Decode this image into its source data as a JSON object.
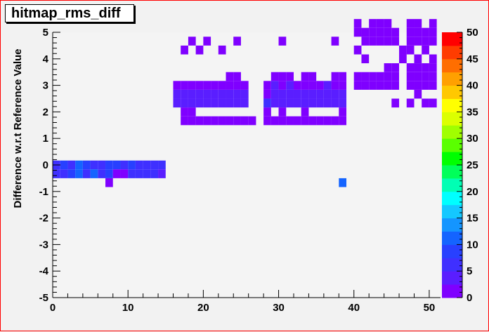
{
  "chart_data": {
    "type": "heatmap",
    "title": "hitmap_rms_diff",
    "xlabel": "",
    "ylabel": "Difference w.r.t Reference Value",
    "xlim": [
      0,
      51.5
    ],
    "ylim": [
      -5,
      5
    ],
    "x_ticks": [
      0,
      10,
      20,
      30,
      40,
      50
    ],
    "y_ticks": [
      -5,
      -4,
      -3,
      -2,
      -1,
      0,
      1,
      2,
      3,
      4,
      5
    ],
    "x_bin_width": 1,
    "y_bin_width": 0.333,
    "zlim": [
      0,
      50
    ],
    "z_ticks": [
      0,
      5,
      10,
      15,
      20,
      25,
      30,
      35,
      40,
      45,
      50
    ],
    "palette": [
      "#7f00ff",
      "#5a1eff",
      "#3f30ff",
      "#2840ff",
      "#1464ff",
      "#1495ff",
      "#14c8ff",
      "#00ffff",
      "#00ffb4",
      "#00ff5a",
      "#00ff00",
      "#5aff00",
      "#a0ff00",
      "#dcff00",
      "#ffff00",
      "#ffc800",
      "#ffa000",
      "#ff6e00",
      "#ff3c00",
      "#ff0000"
    ],
    "grid": false,
    "legend": "none",
    "colorbar": "right",
    "cells": [
      {
        "x": 0,
        "y": 0,
        "z": 6
      },
      {
        "x": 1,
        "y": 0,
        "z": 8
      },
      {
        "x": 2,
        "y": 0,
        "z": 6
      },
      {
        "x": 3,
        "y": 0,
        "z": 10
      },
      {
        "x": 4,
        "y": 0,
        "z": 8
      },
      {
        "x": 5,
        "y": 0,
        "z": 6
      },
      {
        "x": 6,
        "y": 0,
        "z": 6
      },
      {
        "x": 7,
        "y": 0,
        "z": 8
      },
      {
        "x": 8,
        "y": 0,
        "z": 8
      },
      {
        "x": 9,
        "y": 0,
        "z": 6
      },
      {
        "x": 10,
        "y": 0,
        "z": 8
      },
      {
        "x": 11,
        "y": 0,
        "z": 6
      },
      {
        "x": 12,
        "y": 0,
        "z": 6
      },
      {
        "x": 13,
        "y": 0,
        "z": 6
      },
      {
        "x": 14,
        "y": 0,
        "z": 6
      },
      {
        "x": 0,
        "y": -0.333,
        "z": 6
      },
      {
        "x": 1,
        "y": -0.333,
        "z": 6
      },
      {
        "x": 2,
        "y": -0.333,
        "z": 8
      },
      {
        "x": 3,
        "y": -0.333,
        "z": 10
      },
      {
        "x": 4,
        "y": -0.333,
        "z": 6
      },
      {
        "x": 5,
        "y": -0.333,
        "z": 10
      },
      {
        "x": 6,
        "y": -0.333,
        "z": 6
      },
      {
        "x": 7,
        "y": -0.333,
        "z": 8
      },
      {
        "x": 8,
        "y": -0.333,
        "z": 1
      },
      {
        "x": 9,
        "y": -0.333,
        "z": 1
      },
      {
        "x": 10,
        "y": -0.333,
        "z": 6
      },
      {
        "x": 11,
        "y": -0.333,
        "z": 6
      },
      {
        "x": 12,
        "y": -0.333,
        "z": 6
      },
      {
        "x": 13,
        "y": -0.333,
        "z": 6
      },
      {
        "x": 14,
        "y": -0.333,
        "z": 3
      },
      {
        "x": 7,
        "y": -0.667,
        "z": 1
      },
      {
        "x": 38,
        "y": -0.667,
        "z": 12
      },
      {
        "x": 17,
        "y": 1.667,
        "z": 1
      },
      {
        "x": 18,
        "y": 1.667,
        "z": 1
      },
      {
        "x": 19,
        "y": 1.667,
        "z": 1
      },
      {
        "x": 20,
        "y": 1.667,
        "z": 1
      },
      {
        "x": 21,
        "y": 1.667,
        "z": 1
      },
      {
        "x": 22,
        "y": 1.667,
        "z": 1
      },
      {
        "x": 23,
        "y": 1.667,
        "z": 1
      },
      {
        "x": 24,
        "y": 1.667,
        "z": 1
      },
      {
        "x": 25,
        "y": 1.667,
        "z": 1
      },
      {
        "x": 26,
        "y": 1.667,
        "z": 1
      },
      {
        "x": 28,
        "y": 1.667,
        "z": 1
      },
      {
        "x": 29,
        "y": 1.667,
        "z": 1
      },
      {
        "x": 30,
        "y": 1.667,
        "z": 1
      },
      {
        "x": 31,
        "y": 1.667,
        "z": 1
      },
      {
        "x": 32,
        "y": 1.667,
        "z": 1
      },
      {
        "x": 33,
        "y": 1.667,
        "z": 1
      },
      {
        "x": 34,
        "y": 1.667,
        "z": 1
      },
      {
        "x": 35,
        "y": 1.667,
        "z": 1
      },
      {
        "x": 36,
        "y": 1.667,
        "z": 1
      },
      {
        "x": 37,
        "y": 1.667,
        "z": 1
      },
      {
        "x": 38,
        "y": 1.667,
        "z": 1
      },
      {
        "x": 17,
        "y": 2,
        "z": 1
      },
      {
        "x": 18,
        "y": 2,
        "z": 1
      },
      {
        "x": 28,
        "y": 2,
        "z": 1
      },
      {
        "x": 30,
        "y": 2,
        "z": 1
      },
      {
        "x": 33,
        "y": 2,
        "z": 1
      },
      {
        "x": 38,
        "y": 2,
        "z": 1
      },
      {
        "x": 16,
        "y": 2.333,
        "z": 3
      },
      {
        "x": 17,
        "y": 2.333,
        "z": 3
      },
      {
        "x": 18,
        "y": 2.333,
        "z": 3
      },
      {
        "x": 19,
        "y": 2.333,
        "z": 3
      },
      {
        "x": 20,
        "y": 2.333,
        "z": 3
      },
      {
        "x": 21,
        "y": 2.333,
        "z": 3
      },
      {
        "x": 22,
        "y": 2.333,
        "z": 3
      },
      {
        "x": 23,
        "y": 2.333,
        "z": 3
      },
      {
        "x": 24,
        "y": 2.333,
        "z": 3
      },
      {
        "x": 25,
        "y": 2.333,
        "z": 3
      },
      {
        "x": 28,
        "y": 2.333,
        "z": 6
      },
      {
        "x": 29,
        "y": 2.333,
        "z": 3
      },
      {
        "x": 30,
        "y": 2.333,
        "z": 3
      },
      {
        "x": 31,
        "y": 2.333,
        "z": 3
      },
      {
        "x": 32,
        "y": 2.333,
        "z": 3
      },
      {
        "x": 33,
        "y": 2.333,
        "z": 3
      },
      {
        "x": 34,
        "y": 2.333,
        "z": 3
      },
      {
        "x": 35,
        "y": 2.333,
        "z": 3
      },
      {
        "x": 36,
        "y": 2.333,
        "z": 3
      },
      {
        "x": 37,
        "y": 2.333,
        "z": 3
      },
      {
        "x": 38,
        "y": 2.333,
        "z": 3
      },
      {
        "x": 16,
        "y": 2.667,
        "z": 3
      },
      {
        "x": 17,
        "y": 2.667,
        "z": 3
      },
      {
        "x": 18,
        "y": 2.667,
        "z": 3
      },
      {
        "x": 19,
        "y": 2.667,
        "z": 3
      },
      {
        "x": 20,
        "y": 2.667,
        "z": 3
      },
      {
        "x": 21,
        "y": 2.667,
        "z": 3
      },
      {
        "x": 22,
        "y": 2.667,
        "z": 3
      },
      {
        "x": 23,
        "y": 2.667,
        "z": 3
      },
      {
        "x": 24,
        "y": 2.667,
        "z": 3
      },
      {
        "x": 25,
        "y": 2.667,
        "z": 3
      },
      {
        "x": 28,
        "y": 2.667,
        "z": 1
      },
      {
        "x": 29,
        "y": 2.667,
        "z": 3
      },
      {
        "x": 30,
        "y": 2.667,
        "z": 3
      },
      {
        "x": 31,
        "y": 2.667,
        "z": 3
      },
      {
        "x": 32,
        "y": 2.667,
        "z": 3
      },
      {
        "x": 33,
        "y": 2.667,
        "z": 3
      },
      {
        "x": 34,
        "y": 2.667,
        "z": 3
      },
      {
        "x": 35,
        "y": 2.667,
        "z": 3
      },
      {
        "x": 36,
        "y": 2.667,
        "z": 3
      },
      {
        "x": 37,
        "y": 2.667,
        "z": 3
      },
      {
        "x": 38,
        "y": 2.667,
        "z": 3
      },
      {
        "x": 16,
        "y": 3,
        "z": 1
      },
      {
        "x": 17,
        "y": 3,
        "z": 1
      },
      {
        "x": 18,
        "y": 3,
        "z": 1
      },
      {
        "x": 19,
        "y": 3,
        "z": 1
      },
      {
        "x": 20,
        "y": 3,
        "z": 1
      },
      {
        "x": 21,
        "y": 3,
        "z": 1
      },
      {
        "x": 22,
        "y": 3,
        "z": 1
      },
      {
        "x": 23,
        "y": 3,
        "z": 1
      },
      {
        "x": 24,
        "y": 3,
        "z": 1
      },
      {
        "x": 25,
        "y": 3,
        "z": 1
      },
      {
        "x": 28,
        "y": 3,
        "z": 1
      },
      {
        "x": 29,
        "y": 3,
        "z": 3
      },
      {
        "x": 30,
        "y": 3,
        "z": 1
      },
      {
        "x": 31,
        "y": 3,
        "z": 3
      },
      {
        "x": 32,
        "y": 3,
        "z": 1
      },
      {
        "x": 33,
        "y": 3,
        "z": 1
      },
      {
        "x": 34,
        "y": 3,
        "z": 1
      },
      {
        "x": 35,
        "y": 3,
        "z": 1
      },
      {
        "x": 36,
        "y": 3,
        "z": 3
      },
      {
        "x": 37,
        "y": 3,
        "z": 1
      },
      {
        "x": 38,
        "y": 3,
        "z": 1
      },
      {
        "x": 23,
        "y": 3.333,
        "z": 1
      },
      {
        "x": 24,
        "y": 3.333,
        "z": 1
      },
      {
        "x": 29,
        "y": 3.333,
        "z": 1
      },
      {
        "x": 30,
        "y": 3.333,
        "z": 1
      },
      {
        "x": 31,
        "y": 3.333,
        "z": 1
      },
      {
        "x": 33,
        "y": 3.333,
        "z": 1
      },
      {
        "x": 34,
        "y": 3.333,
        "z": 1
      },
      {
        "x": 37,
        "y": 3.333,
        "z": 1
      },
      {
        "x": 38,
        "y": 3.333,
        "z": 1
      },
      {
        "x": 40,
        "y": 3,
        "z": 1
      },
      {
        "x": 41,
        "y": 3,
        "z": 1
      },
      {
        "x": 42,
        "y": 3,
        "z": 1
      },
      {
        "x": 43,
        "y": 3,
        "z": 1
      },
      {
        "x": 44,
        "y": 3,
        "z": 1
      },
      {
        "x": 45,
        "y": 3,
        "z": 1
      },
      {
        "x": 40,
        "y": 3.333,
        "z": 1
      },
      {
        "x": 41,
        "y": 3.333,
        "z": 1
      },
      {
        "x": 42,
        "y": 3.333,
        "z": 1
      },
      {
        "x": 43,
        "y": 3.333,
        "z": 1
      },
      {
        "x": 44,
        "y": 3.333,
        "z": 1
      },
      {
        "x": 45,
        "y": 3.333,
        "z": 1
      },
      {
        "x": 47,
        "y": 3,
        "z": 1
      },
      {
        "x": 48,
        "y": 3,
        "z": 1
      },
      {
        "x": 49,
        "y": 3,
        "z": 1
      },
      {
        "x": 50,
        "y": 3,
        "z": 1
      },
      {
        "x": 47,
        "y": 3.333,
        "z": 1
      },
      {
        "x": 48,
        "y": 3.333,
        "z": 1
      },
      {
        "x": 49,
        "y": 3.333,
        "z": 1
      },
      {
        "x": 50,
        "y": 3.333,
        "z": 1
      },
      {
        "x": 48,
        "y": 2.667,
        "z": 1
      },
      {
        "x": 44,
        "y": 3.667,
        "z": 1
      },
      {
        "x": 45,
        "y": 3.667,
        "z": 1
      },
      {
        "x": 47,
        "y": 3.667,
        "z": 1
      },
      {
        "x": 48,
        "y": 3.667,
        "z": 1
      },
      {
        "x": 49,
        "y": 3.667,
        "z": 1
      },
      {
        "x": 50,
        "y": 3.667,
        "z": 1
      },
      {
        "x": 45,
        "y": 2.333,
        "z": 1
      },
      {
        "x": 47,
        "y": 2.333,
        "z": 1
      },
      {
        "x": 49,
        "y": 2.333,
        "z": 1
      },
      {
        "x": 50,
        "y": 2.333,
        "z": 1
      },
      {
        "x": 41,
        "y": 4,
        "z": 1
      },
      {
        "x": 46,
        "y": 4,
        "z": 1
      },
      {
        "x": 48,
        "y": 4,
        "z": 1
      },
      {
        "x": 50,
        "y": 4,
        "z": 1
      },
      {
        "x": 40,
        "y": 4.333,
        "z": 1
      },
      {
        "x": 46,
        "y": 4.333,
        "z": 1
      },
      {
        "x": 47,
        "y": 4.333,
        "z": 1
      },
      {
        "x": 49,
        "y": 4.333,
        "z": 1
      },
      {
        "x": 41,
        "y": 4.667,
        "z": 1
      },
      {
        "x": 42,
        "y": 4.667,
        "z": 1
      },
      {
        "x": 43,
        "y": 4.667,
        "z": 1
      },
      {
        "x": 44,
        "y": 4.667,
        "z": 1
      },
      {
        "x": 45,
        "y": 4.667,
        "z": 1
      },
      {
        "x": 47,
        "y": 4.667,
        "z": 1
      },
      {
        "x": 48,
        "y": 4.667,
        "z": 1
      },
      {
        "x": 49,
        "y": 4.667,
        "z": 1
      },
      {
        "x": 50,
        "y": 4.667,
        "z": 1
      },
      {
        "x": 40,
        "y": 5,
        "z": 1
      },
      {
        "x": 41,
        "y": 5,
        "z": 1
      },
      {
        "x": 42,
        "y": 5,
        "z": 1
      },
      {
        "x": 43,
        "y": 5,
        "z": 1
      },
      {
        "x": 44,
        "y": 5,
        "z": 1
      },
      {
        "x": 45,
        "y": 5,
        "z": 1
      },
      {
        "x": 47,
        "y": 5,
        "z": 1
      },
      {
        "x": 48,
        "y": 5,
        "z": 1
      },
      {
        "x": 49,
        "y": 5,
        "z": 1
      },
      {
        "x": 50,
        "y": 5,
        "z": 1
      },
      {
        "x": 40,
        "y": 5.333,
        "z": 1
      },
      {
        "x": 42,
        "y": 5.333,
        "z": 1
      },
      {
        "x": 43,
        "y": 5.333,
        "z": 1
      },
      {
        "x": 44,
        "y": 5.333,
        "z": 1
      },
      {
        "x": 47,
        "y": 5.333,
        "z": 1
      },
      {
        "x": 48,
        "y": 5.333,
        "z": 1
      },
      {
        "x": 50,
        "y": 5.333,
        "z": 1
      },
      {
        "x": 18,
        "y": 4.667,
        "z": 1
      },
      {
        "x": 20,
        "y": 4.667,
        "z": 1
      },
      {
        "x": 24,
        "y": 4.667,
        "z": 1
      },
      {
        "x": 30,
        "y": 4.667,
        "z": 1
      },
      {
        "x": 37,
        "y": 4.667,
        "z": 1
      },
      {
        "x": 17,
        "y": 4.333,
        "z": 1
      },
      {
        "x": 19,
        "y": 4.333,
        "z": 1
      },
      {
        "x": 22,
        "y": 4.333,
        "z": 1
      }
    ]
  }
}
